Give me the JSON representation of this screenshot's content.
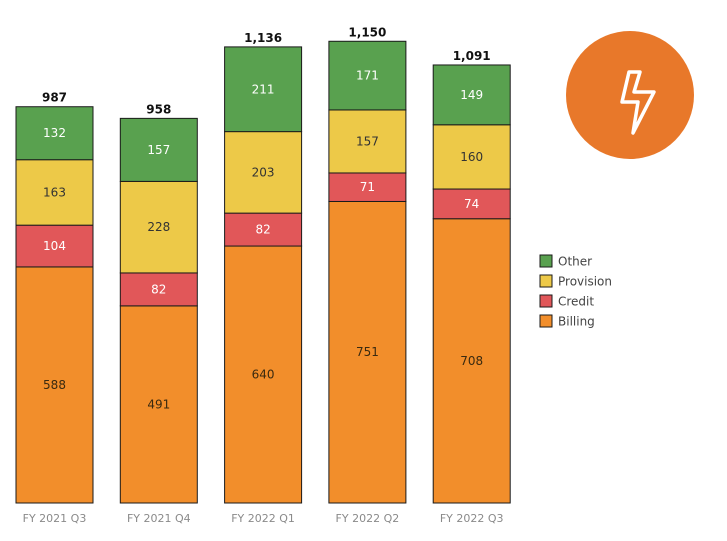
{
  "chart_data": {
    "type": "bar",
    "stacked": true,
    "categories": [
      "FY 2021 Q3",
      "FY 2021 Q4",
      "FY 2022 Q1",
      "FY 2022 Q2",
      "FY 2022 Q3"
    ],
    "series": [
      {
        "name": "Billing",
        "values": [
          588,
          491,
          640,
          751,
          708
        ],
        "color": "#f28e2b",
        "label_color": "#3a2a10"
      },
      {
        "name": "Credit",
        "values": [
          104,
          82,
          82,
          71,
          74
        ],
        "color": "#e15759",
        "label_color": "#ffffff"
      },
      {
        "name": "Provision",
        "values": [
          163,
          228,
          203,
          157,
          160
        ],
        "color": "#edc948",
        "label_color": "#333333"
      },
      {
        "name": "Other",
        "values": [
          132,
          157,
          211,
          171,
          149
        ],
        "color": "#59a14f",
        "label_color": "#ffffff"
      }
    ],
    "totals": [
      "987",
      "958",
      "1,136",
      "1,150",
      "1,091"
    ],
    "legend_order": [
      "Other",
      "Provision",
      "Credit",
      "Billing"
    ],
    "legend_placement": "right",
    "grid": false
  },
  "icon": {
    "name": "lightning-bolt-icon",
    "background": "#e8782a"
  }
}
